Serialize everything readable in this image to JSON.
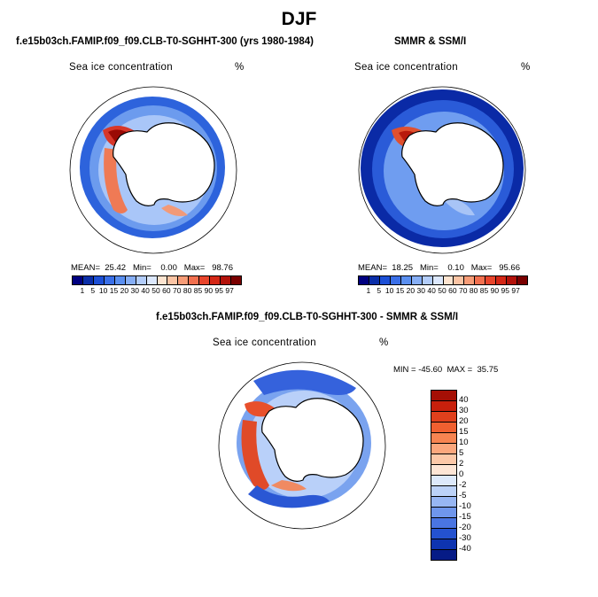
{
  "figure_title": "DJF",
  "left_panel": {
    "case_title": "f.e15b03ch.FAMIP.f09_f09.CLB-T0-SGHHT-300 (yrs 1980-1984)",
    "plot_title": "Sea ice concentration",
    "units": "%",
    "stats": "MEAN=  25.42   Min=    0.00   Max=   98.76"
  },
  "right_panel": {
    "case_title": "SMMR & SSM/I",
    "plot_title": "Sea ice concentration",
    "units": "%",
    "stats": "MEAN=  18.25   Min=    0.10   Max=   95.66"
  },
  "bottom_panel": {
    "case_title": "f.e15b03ch.FAMIP.f09_f09.CLB-T0-SGHHT-300 - SMMR & SSM/I",
    "plot_title": "Sea ice concentration",
    "units": "%",
    "stats": "MIN = -45.60  MAX =  35.75"
  },
  "concentration_colorbar": {
    "tick_labels": [
      "1",
      "5",
      "10",
      "15",
      "20",
      "30",
      "40",
      "50",
      "60",
      "70",
      "80",
      "85",
      "90",
      "95",
      "97"
    ],
    "colors": [
      "#000080",
      "#0a2ea8",
      "#1c4fd6",
      "#3a6fe8",
      "#5a8ff0",
      "#86aef5",
      "#b3cdfa",
      "#dce8fd",
      "#fde4d0",
      "#fbc4a4",
      "#f79c77",
      "#f2704f",
      "#e8452c",
      "#d42716",
      "#b3120a",
      "#7a0000"
    ]
  },
  "difference_colorbar": {
    "tick_labels": [
      "40",
      "30",
      "20",
      "15",
      "10",
      "5",
      "2",
      "0",
      "-2",
      "-5",
      "-10",
      "-15",
      "-20",
      "-30",
      "-40"
    ],
    "colors": [
      "#a50f05",
      "#c8200c",
      "#e0401c",
      "#f06030",
      "#f78451",
      "#fba77d",
      "#fcc8a8",
      "#fde5d5",
      "#dde9fb",
      "#bcd2f8",
      "#97b6f3",
      "#6f96ec",
      "#4a75e2",
      "#2452d0",
      "#0e34b0",
      "#061b86"
    ]
  }
}
